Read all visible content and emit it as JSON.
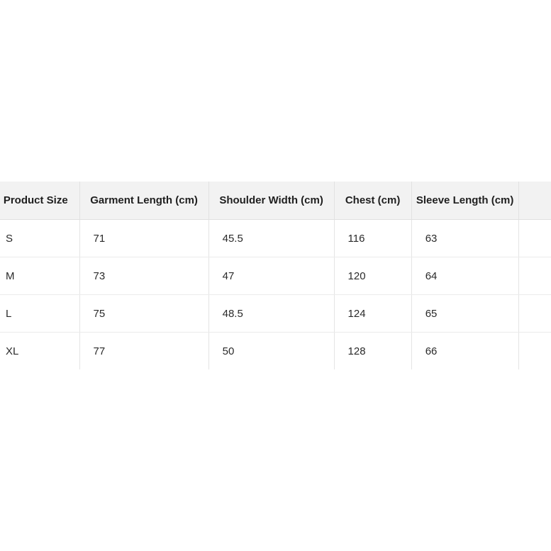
{
  "chart_data": {
    "type": "table",
    "title": "",
    "columns": [
      "Product Size",
      "Garment Length (cm)",
      "Shoulder Width (cm)",
      "Chest (cm)",
      "Sleeve Length (cm)"
    ],
    "rows": [
      [
        "S",
        "71",
        "45.5",
        "116",
        "63"
      ],
      [
        "M",
        "73",
        "47",
        "120",
        "64"
      ],
      [
        "L",
        "75",
        "48.5",
        "124",
        "65"
      ],
      [
        "XL",
        "77",
        "50",
        "128",
        "66"
      ]
    ],
    "layout_hints": {
      "header_position": "top",
      "grid": true,
      "clipped_edges": [
        "left",
        "right",
        "bottom"
      ]
    }
  },
  "colors": {
    "header_bg": "#f2f2f2",
    "row_bg": "#ffffff",
    "border_vertical": "#e2e2e2",
    "border_horizontal": "#ebebeb",
    "header_text": "#1f1f1f",
    "body_text": "#2a2a2a",
    "page_bg": "#ffffff"
  }
}
